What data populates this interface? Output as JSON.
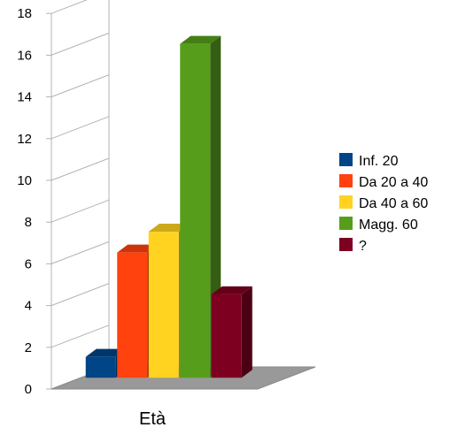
{
  "chart_data": {
    "type": "bar",
    "style": "3d",
    "xlabel": "Età",
    "ylim": [
      0,
      18
    ],
    "yticks": [
      0,
      2,
      4,
      6,
      8,
      10,
      12,
      14,
      16,
      18
    ],
    "grid": true,
    "legend_position": "right",
    "series": [
      {
        "name": "Inf. 20",
        "values": [
          1
        ],
        "color": "#004586"
      },
      {
        "name": "Da 20 a 40",
        "values": [
          6
        ],
        "color": "#ff420e"
      },
      {
        "name": "Da 40 a 60",
        "values": [
          7
        ],
        "color": "#ffd320"
      },
      {
        "name": "Magg. 60",
        "values": [
          16
        ],
        "color": "#579d1c"
      },
      {
        "name": "?",
        "values": [
          4
        ],
        "color": "#7e0021"
      }
    ]
  },
  "colors": {
    "floor": "#999999",
    "grid": "#b3b3b3",
    "axis": "#b3b3b3"
  }
}
